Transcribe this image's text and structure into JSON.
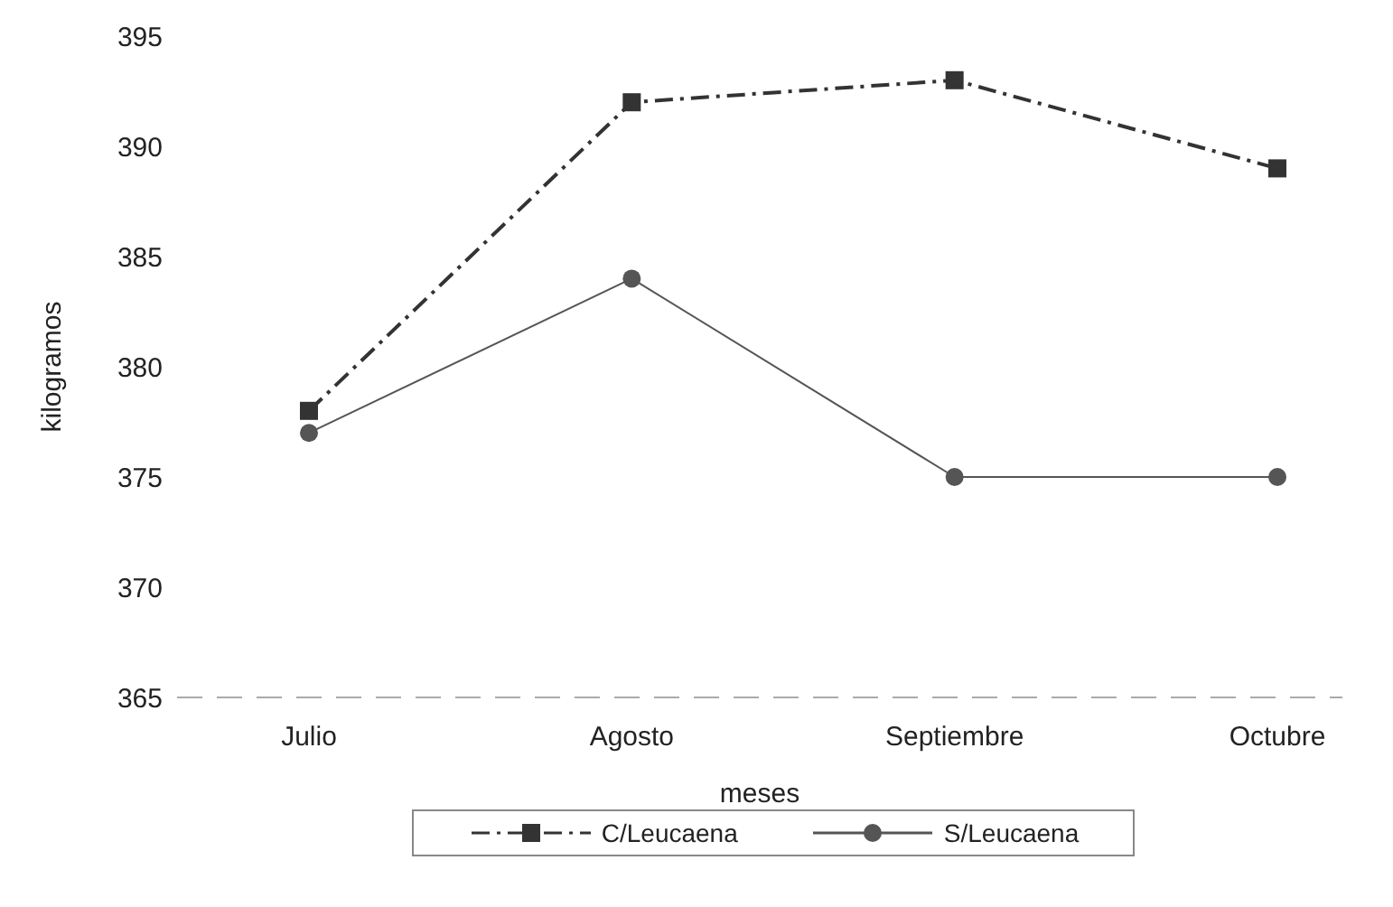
{
  "chart_data": {
    "type": "line",
    "xlabel": "meses",
    "ylabel": "kilogramos",
    "categories": [
      "Julio",
      "Agosto",
      "Septiembre",
      "Octubre"
    ],
    "series": [
      {
        "name": "C/Leucaena",
        "color": "#333333",
        "values": [
          378,
          392,
          393,
          389
        ],
        "marker": "square",
        "line_style": "dashdot"
      },
      {
        "name": "S/Leucaena",
        "color": "#555555",
        "values": [
          377,
          384,
          375,
          375
        ],
        "marker": "circle",
        "line_style": "solid"
      }
    ],
    "ylim": [
      365,
      395
    ],
    "yticks": [
      365,
      370,
      375,
      380,
      385,
      390,
      395
    ],
    "legend": "bottom"
  }
}
